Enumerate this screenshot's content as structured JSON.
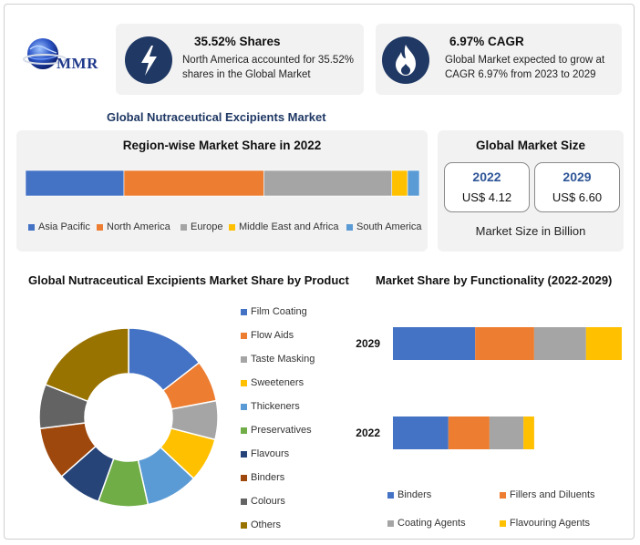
{
  "header": {
    "logo_text": "MMR",
    "stats": [
      {
        "icon": "lightning-icon",
        "title": "35.52% Shares",
        "text": "North America accounted for 35.52% shares in the Global Market"
      },
      {
        "icon": "flame-icon",
        "title": "6.97% CAGR",
        "text": "Global Market expected to grow at CAGR 6.97% from 2023 to 2029"
      }
    ]
  },
  "market_title": "Global Nutraceutical Excipients Market",
  "market_size": {
    "title": "Global Market Size",
    "boxes": [
      {
        "year": "2022",
        "value": "US$ 4.12"
      },
      {
        "year": "2029",
        "value": "US$ 6.60"
      }
    ],
    "footer": "Market Size in Billion"
  },
  "colors": {
    "blue": "#4472c4",
    "orange": "#ed7d31",
    "gray": "#a5a5a5",
    "yellow": "#ffc000",
    "lightblue": "#5b9bd5",
    "green": "#70ad47",
    "navy": "#264478",
    "brown": "#9e480e",
    "darkgray": "#636363",
    "olive": "#997300"
  },
  "chart_data": [
    {
      "type": "bar",
      "orientation": "horizontal-stacked",
      "title": "Region-wise Market Share in 2022",
      "categories": [
        "2022"
      ],
      "series": [
        {
          "name": "Asia Pacific",
          "values": [
            25
          ],
          "color": "#4472c4"
        },
        {
          "name": "North America",
          "values": [
            35.52
          ],
          "color": "#ed7d31"
        },
        {
          "name": "Europe",
          "values": [
            32.5
          ],
          "color": "#a5a5a5"
        },
        {
          "name": "Middle East and Africa",
          "values": [
            4
          ],
          "color": "#ffc000"
        },
        {
          "name": "South America",
          "values": [
            3
          ],
          "color": "#5b9bd5"
        }
      ],
      "legend": "bottom"
    },
    {
      "type": "pie",
      "donut": true,
      "title": "Global Nutraceutical Excipients Market Share by Product",
      "slices": [
        {
          "name": "Film Coating",
          "value": 14.5,
          "color": "#4472c4"
        },
        {
          "name": "Flow Aids",
          "value": 7.5,
          "color": "#ed7d31"
        },
        {
          "name": "Taste Masking",
          "value": 7,
          "color": "#a5a5a5"
        },
        {
          "name": "Sweeteners",
          "value": 8,
          "color": "#ffc000"
        },
        {
          "name": "Thickeners",
          "value": 9.5,
          "color": "#5b9bd5"
        },
        {
          "name": "Preservatives",
          "value": 9,
          "color": "#70ad47"
        },
        {
          "name": "Flavours",
          "value": 8,
          "color": "#264478"
        },
        {
          "name": "Binders",
          "value": 9.5,
          "color": "#9e480e"
        },
        {
          "name": "Colours",
          "value": 8,
          "color": "#636363"
        },
        {
          "name": "Others",
          "value": 19,
          "color": "#997300"
        }
      ],
      "legend": "right"
    },
    {
      "type": "bar",
      "orientation": "horizontal-stacked",
      "title": "Market Share by Functionality (2022-2029)",
      "categories": [
        "2029",
        "2022"
      ],
      "series": [
        {
          "name": "Binders",
          "values": [
            2.3,
            1.55
          ],
          "color": "#4472c4"
        },
        {
          "name": "Fillers and Diluents",
          "values": [
            1.65,
            1.15
          ],
          "color": "#ed7d31"
        },
        {
          "name": "Coating Agents",
          "values": [
            1.45,
            0.95
          ],
          "color": "#a5a5a5"
        },
        {
          "name": "Flavouring Agents",
          "values": [
            1.0,
            0.3
          ],
          "color": "#ffc000"
        }
      ],
      "xlim": [
        0,
        6.4
      ],
      "legend": "bottom"
    }
  ]
}
